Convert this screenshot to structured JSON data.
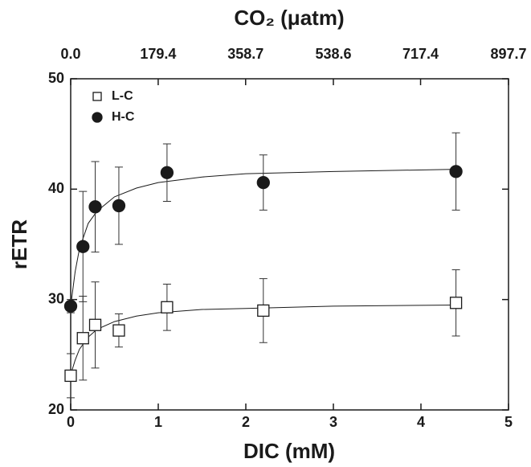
{
  "chart_data": {
    "type": "scatter",
    "xlabel": "DIC (mM)",
    "ylabel": "rETR",
    "x2label": "CO₂ (μatm)",
    "x": [
      0,
      0.14,
      0.28,
      0.55,
      1.1,
      2.2,
      4.4
    ],
    "series": [
      {
        "name": "L-C",
        "marker": "square",
        "color": "#ffffff",
        "values": [
          23.1,
          26.5,
          27.7,
          27.2,
          29.3,
          29.0,
          29.7
        ],
        "errors": [
          2.0,
          3.8,
          3.9,
          1.5,
          2.1,
          2.9,
          3.0
        ],
        "fit": {
          "x": [
            0,
            0.05,
            0.1,
            0.2,
            0.3,
            0.5,
            0.75,
            1,
            1.5,
            2,
            3,
            4.4
          ],
          "values": [
            23.2,
            24.5,
            25.5,
            26.6,
            27.3,
            28.0,
            28.5,
            28.8,
            29.1,
            29.2,
            29.4,
            29.5
          ]
        }
      },
      {
        "name": "H-C",
        "marker": "circle",
        "color": "#1a1a1a",
        "values": [
          29.4,
          34.8,
          38.4,
          38.5,
          41.5,
          40.6,
          41.6
        ],
        "errors": [
          0.6,
          5.0,
          4.1,
          3.5,
          2.6,
          2.5,
          3.5
        ],
        "fit": {
          "x": [
            0,
            0.05,
            0.1,
            0.2,
            0.3,
            0.5,
            0.75,
            1,
            1.5,
            2,
            3,
            4.4
          ],
          "values": [
            29.4,
            32.5,
            34.6,
            36.9,
            38.0,
            39.3,
            40.1,
            40.6,
            41.1,
            41.4,
            41.6,
            41.8
          ]
        }
      }
    ],
    "xlim": [
      0,
      5
    ],
    "xticks": [
      0,
      1,
      2,
      3,
      4,
      5
    ],
    "ylim": [
      20,
      50
    ],
    "yticks": [
      20,
      30,
      40,
      50
    ],
    "x2lim": [
      0,
      897.7
    ],
    "x2ticks": [
      {
        "value": 0,
        "label": "0.0"
      },
      179.4,
      358.7,
      538.6,
      717.4,
      897.7
    ],
    "legend": "upper left"
  }
}
